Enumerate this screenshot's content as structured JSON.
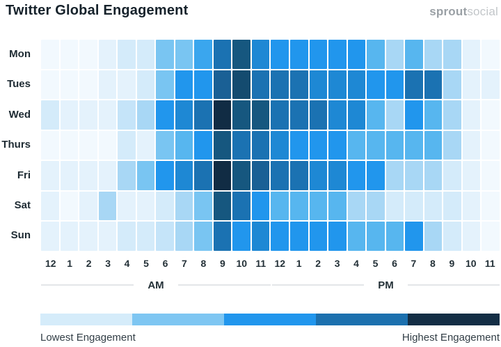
{
  "title": "Twitter Global Engagement",
  "logo": {
    "bold": "sprout",
    "light": "social"
  },
  "chart_data": {
    "type": "heatmap",
    "title": "Twitter Global Engagement",
    "rows": [
      "Mon",
      "Tues",
      "Wed",
      "Thurs",
      "Fri",
      "Sat",
      "Sun"
    ],
    "columns": [
      "12",
      "1",
      "2",
      "3",
      "4",
      "5",
      "6",
      "7",
      "8",
      "9",
      "10",
      "11",
      "12",
      "1",
      "2",
      "3",
      "4",
      "5",
      "6",
      "7",
      "8",
      "9",
      "10",
      "11"
    ],
    "column_groups": [
      {
        "label": "AM",
        "span": 12
      },
      {
        "label": "PM",
        "span": 12
      }
    ],
    "scale_order": [
      "w0",
      "w1",
      "w2",
      "w25",
      "b3",
      "b4",
      "b5",
      "b55",
      "b6",
      "b65",
      "b7",
      "b75",
      "b8",
      "b85",
      "b9"
    ],
    "levels": {
      "w0": "#F2F9FE",
      "w1": "#E4F2FC",
      "w2": "#D4EBFA",
      "w25": "#C5E4F9",
      "b3": "#A8D7F5",
      "b4": "#79C5F2",
      "b5": "#57B6EF",
      "b55": "#3AA6EE",
      "b6": "#2196ED",
      "b65": "#1E88D4",
      "b7": "#1B72B2",
      "b75": "#1A6095",
      "b8": "#16577F",
      "b85": "#144B6F",
      "b9": "#112C44"
    },
    "cells": [
      [
        "w0",
        "w0",
        "w0",
        "w1",
        "w2",
        "w2",
        "b4",
        "b4",
        "b55",
        "b7",
        "b8",
        "b65",
        "b6",
        "b6",
        "b6",
        "b6",
        "b6",
        "b5",
        "b3",
        "b5",
        "b3",
        "b3",
        "w1",
        "w0"
      ],
      [
        "w0",
        "w0",
        "w0",
        "w1",
        "w1",
        "w2",
        "b4",
        "b6",
        "b6",
        "b75",
        "b85",
        "b7",
        "b7",
        "b7",
        "b65",
        "b65",
        "b65",
        "b6",
        "b6",
        "b7",
        "b7",
        "b3",
        "w1",
        "w1"
      ],
      [
        "w2",
        "w1",
        "w1",
        "w1",
        "w25",
        "b3",
        "b6",
        "b65",
        "b7",
        "b9",
        "b8",
        "b8",
        "b7",
        "b7",
        "b7",
        "b65",
        "b65",
        "b5",
        "b3",
        "b6",
        "b5",
        "b3",
        "w1",
        "w0"
      ],
      [
        "w0",
        "w0",
        "w0",
        "w0",
        "w2",
        "w1",
        "b4",
        "b5",
        "b6",
        "b8",
        "b7",
        "b7",
        "b65",
        "b6",
        "b6",
        "b6",
        "b5",
        "b5",
        "b5",
        "b5",
        "b5",
        "b3",
        "w1",
        "w0"
      ],
      [
        "w1",
        "w1",
        "w1",
        "w1",
        "b3",
        "b4",
        "b6",
        "b65",
        "b7",
        "b9",
        "b8",
        "b75",
        "b7",
        "b7",
        "b65",
        "b65",
        "b6",
        "b6",
        "b3",
        "b3",
        "b3",
        "w2",
        "w1",
        "w0"
      ],
      [
        "w1",
        "w0",
        "w1",
        "b3",
        "w1",
        "w1",
        "w2",
        "b3",
        "b4",
        "b8",
        "b7",
        "b6",
        "b5",
        "b5",
        "b5",
        "b5",
        "b3",
        "b3",
        "w2",
        "w2",
        "w2",
        "w2",
        "w1",
        "w0"
      ],
      [
        "w1",
        "w1",
        "w1",
        "w1",
        "w2",
        "w2",
        "w25",
        "b3",
        "b4",
        "b7",
        "b6",
        "b65",
        "b6",
        "b6",
        "b6",
        "b6",
        "b5",
        "b5",
        "b5",
        "b6",
        "b3",
        "w2",
        "w1",
        "w0"
      ]
    ],
    "legend": {
      "colors": [
        "#D5ECFA",
        "#7EC6F2",
        "#2196ED",
        "#1C70AE",
        "#142E45"
      ],
      "min_label": "Lowest Engagement",
      "max_label": "Highest Engagement"
    }
  }
}
